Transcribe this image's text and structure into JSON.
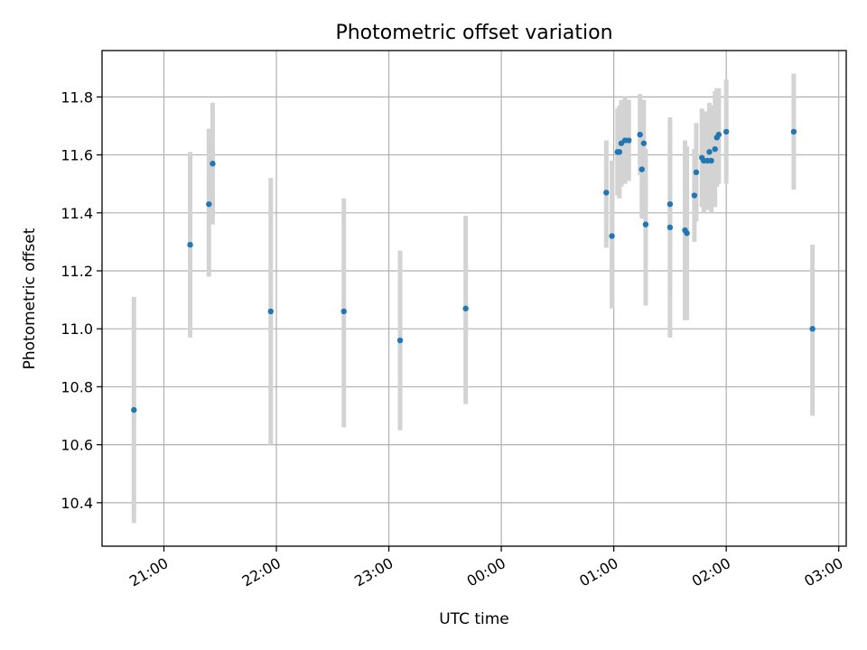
{
  "chart_data": {
    "type": "scatter",
    "title": "Photometric offset variation",
    "xlabel": "UTC time",
    "ylabel": "Photometric offset",
    "x_axis_kind": "time",
    "xlim": [
      "20:27",
      "03:04"
    ],
    "ylim": [
      10.25,
      11.96
    ],
    "grid": true,
    "x_ticks": [
      "21:00",
      "22:00",
      "23:00",
      "00:00",
      "01:00",
      "02:00",
      "03:00"
    ],
    "y_ticks": [
      10.4,
      10.6,
      10.8,
      11.0,
      11.2,
      11.4,
      11.6,
      11.8
    ],
    "marker_color": "#1f77b4",
    "errorbar_color": "#d3d3d3",
    "series": [
      {
        "points": [
          {
            "t": "20:44",
            "y": 10.72,
            "lo": 10.33,
            "hi": 11.11
          },
          {
            "t": "21:14",
            "y": 11.29,
            "lo": 10.97,
            "hi": 11.61
          },
          {
            "t": "21:24",
            "y": 11.43,
            "lo": 11.18,
            "hi": 11.69
          },
          {
            "t": "21:26",
            "y": 11.57,
            "lo": 11.36,
            "hi": 11.78
          },
          {
            "t": "21:57",
            "y": 11.06,
            "lo": 10.6,
            "hi": 11.52
          },
          {
            "t": "22:36",
            "y": 11.06,
            "lo": 10.66,
            "hi": 11.45
          },
          {
            "t": "23:06",
            "y": 10.96,
            "lo": 10.65,
            "hi": 11.27
          },
          {
            "t": "23:41",
            "y": 11.07,
            "lo": 10.74,
            "hi": 11.39
          },
          {
            "t": "00:56",
            "y": 11.47,
            "lo": 11.28,
            "hi": 11.65
          },
          {
            "t": "00:59",
            "y": 11.32,
            "lo": 11.07,
            "hi": 11.58
          },
          {
            "t": "01:02",
            "y": 11.61,
            "lo": 11.46,
            "hi": 11.76
          },
          {
            "t": "01:03",
            "y": 11.61,
            "lo": 11.45,
            "hi": 11.77
          },
          {
            "t": "01:04",
            "y": 11.64,
            "lo": 11.49,
            "hi": 11.79
          },
          {
            "t": "01:06",
            "y": 11.65,
            "lo": 11.5,
            "hi": 11.8
          },
          {
            "t": "01:08",
            "y": 11.65,
            "lo": 11.51,
            "hi": 11.79
          },
          {
            "t": "01:14",
            "y": 11.67,
            "lo": 11.53,
            "hi": 11.81
          },
          {
            "t": "01:15",
            "y": 11.55,
            "lo": 11.38,
            "hi": 11.72
          },
          {
            "t": "01:16",
            "y": 11.64,
            "lo": 11.49,
            "hi": 11.79
          },
          {
            "t": "01:17",
            "y": 11.36,
            "lo": 11.08,
            "hi": 11.62
          },
          {
            "t": "01:30",
            "y": 11.43,
            "lo": 11.13,
            "hi": 11.73
          },
          {
            "t": "01:30",
            "y": 11.35,
            "lo": 10.97,
            "hi": 11.72
          },
          {
            "t": "01:38",
            "y": 11.34,
            "lo": 11.03,
            "hi": 11.65
          },
          {
            "t": "01:39",
            "y": 11.33,
            "lo": 11.03,
            "hi": 11.63
          },
          {
            "t": "01:43",
            "y": 11.46,
            "lo": 11.3,
            "hi": 11.62
          },
          {
            "t": "01:44",
            "y": 11.54,
            "lo": 11.37,
            "hi": 11.71
          },
          {
            "t": "01:47",
            "y": 11.59,
            "lo": 11.42,
            "hi": 11.76
          },
          {
            "t": "01:48",
            "y": 11.58,
            "lo": 11.4,
            "hi": 11.75
          },
          {
            "t": "01:50",
            "y": 11.58,
            "lo": 11.41,
            "hi": 11.75
          },
          {
            "t": "01:51",
            "y": 11.61,
            "lo": 11.43,
            "hi": 11.78
          },
          {
            "t": "01:52",
            "y": 11.58,
            "lo": 11.4,
            "hi": 11.77
          },
          {
            "t": "01:54",
            "y": 11.62,
            "lo": 11.42,
            "hi": 11.82
          },
          {
            "t": "01:55",
            "y": 11.66,
            "lo": 11.49,
            "hi": 11.83
          },
          {
            "t": "01:56",
            "y": 11.67,
            "lo": 11.5,
            "hi": 11.83
          },
          {
            "t": "02:00",
            "y": 11.68,
            "lo": 11.5,
            "hi": 11.86
          },
          {
            "t": "02:36",
            "y": 11.68,
            "lo": 11.48,
            "hi": 11.88
          },
          {
            "t": "02:46",
            "y": 11.0,
            "lo": 10.7,
            "hi": 11.29
          }
        ]
      }
    ]
  }
}
